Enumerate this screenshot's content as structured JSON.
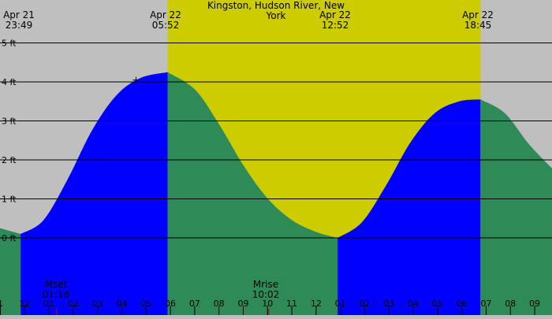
{
  "chart_data": {
    "type": "area",
    "title": "Kingston, Hudson River, New York",
    "ylabel": "",
    "xlabel": "",
    "y_unit": "ft",
    "ylim": [
      -1.9,
      5.3
    ],
    "xlim": [
      "00:56",
      "09:58"
    ],
    "y_ticks": [
      {
        "value": 0,
        "label": "0 ft"
      },
      {
        "value": 1,
        "label": "1 ft"
      },
      {
        "value": 2,
        "label": "2 ft"
      },
      {
        "value": 3,
        "label": "3 ft"
      },
      {
        "value": 4,
        "label": "4 ft"
      },
      {
        "value": 5,
        "label": "5 ft"
      }
    ],
    "x_ticks": [
      "1",
      "12",
      "01",
      "02",
      "03",
      "04",
      "05",
      "06",
      "07",
      "08",
      "09",
      "10",
      "11",
      "12",
      "01",
      "02",
      "03",
      "04",
      "05",
      "06",
      "07",
      "08",
      "09"
    ],
    "day_band": {
      "start": "05:52",
      "end": "18:45",
      "color": "#cccc00"
    },
    "night_color": "#bfbfbf",
    "rising_color": "#0000ff",
    "falling_color": "#2e8b57",
    "events": [
      {
        "date": "Apr 21",
        "time": "23:49",
        "height": 0.1,
        "type": "low"
      },
      {
        "date": "Apr 22",
        "time": "05:52",
        "height": 4.25,
        "type": "high"
      },
      {
        "date": "Apr 22",
        "time": "12:52",
        "height": 0.0,
        "type": "low"
      },
      {
        "date": "Apr 22",
        "time": "18:45",
        "height": 3.55,
        "type": "high"
      }
    ],
    "tide_curve": [
      {
        "t": "22:58",
        "h": 0.25
      },
      {
        "t": "23:49",
        "h": 0.1
      },
      {
        "t": "00:45",
        "h": 0.45
      },
      {
        "t": "01:45",
        "h": 1.5
      },
      {
        "t": "02:45",
        "h": 2.75
      },
      {
        "t": "03:45",
        "h": 3.65
      },
      {
        "t": "04:45",
        "h": 4.1
      },
      {
        "t": "05:52",
        "h": 4.25
      },
      {
        "t": "07:00",
        "h": 3.8
      },
      {
        "t": "08:00",
        "h": 2.9
      },
      {
        "t": "09:00",
        "h": 1.85
      },
      {
        "t": "10:00",
        "h": 1.0
      },
      {
        "t": "11:00",
        "h": 0.45
      },
      {
        "t": "12:00",
        "h": 0.15
      },
      {
        "t": "12:52",
        "h": 0.0
      },
      {
        "t": "13:52",
        "h": 0.4
      },
      {
        "t": "14:52",
        "h": 1.35
      },
      {
        "t": "15:52",
        "h": 2.45
      },
      {
        "t": "16:52",
        "h": 3.2
      },
      {
        "t": "17:52",
        "h": 3.5
      },
      {
        "t": "18:45",
        "h": 3.55
      },
      {
        "t": "19:45",
        "h": 3.2
      },
      {
        "t": "20:45",
        "h": 2.4
      },
      {
        "t": "21:45",
        "h": 1.75
      }
    ],
    "moon": [
      {
        "label": "Mset",
        "time": "01:18"
      },
      {
        "label": "Mrise",
        "time": "10:02"
      }
    ],
    "grid": true
  }
}
